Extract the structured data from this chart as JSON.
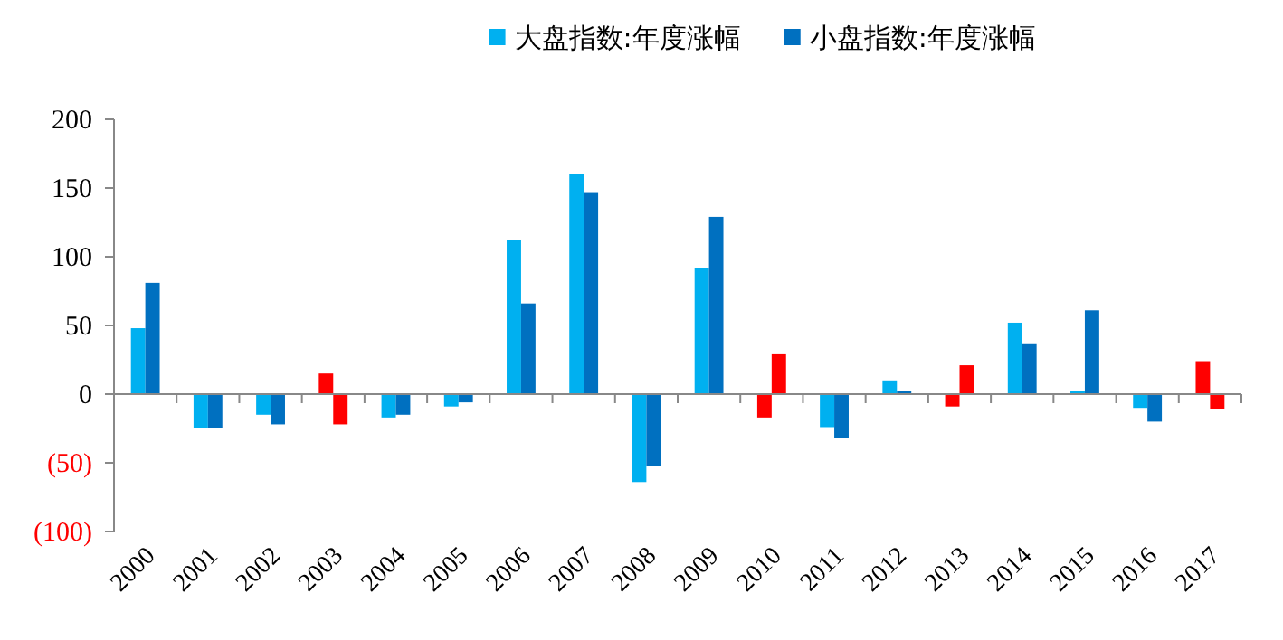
{
  "chart_data": {
    "type": "bar",
    "legend": "top",
    "categories": [
      "2000",
      "2001",
      "2002",
      "2003",
      "2004",
      "2005",
      "2006",
      "2007",
      "2008",
      "2009",
      "2010",
      "2011",
      "2012",
      "2013",
      "2014",
      "2015",
      "2016",
      "2017"
    ],
    "series": [
      {
        "name": "大盘指数:年度涨幅",
        "color": "#00b0f0",
        "values": [
          48,
          -25,
          -15,
          15,
          -17,
          -9,
          112,
          160,
          -64,
          92,
          -17,
          -24,
          10,
          -9,
          52,
          2,
          -10,
          24
        ],
        "colors": [
          "#00b0f0",
          "#00b0f0",
          "#00b0f0",
          "#ff0000",
          "#00b0f0",
          "#00b0f0",
          "#00b0f0",
          "#00b0f0",
          "#00b0f0",
          "#00b0f0",
          "#ff0000",
          "#00b0f0",
          "#00b0f0",
          "#ff0000",
          "#00b0f0",
          "#00b0f0",
          "#00b0f0",
          "#ff0000"
        ]
      },
      {
        "name": "小盘指数:年度涨幅",
        "color": "#0070c0",
        "values": [
          81,
          -25,
          -22,
          -22,
          -15,
          -6,
          66,
          147,
          -52,
          129,
          29,
          -32,
          2,
          21,
          37,
          61,
          -20,
          -11
        ],
        "colors": [
          "#0070c0",
          "#0070c0",
          "#0070c0",
          "#ff0000",
          "#0070c0",
          "#0070c0",
          "#0070c0",
          "#0070c0",
          "#0070c0",
          "#0070c0",
          "#ff0000",
          "#0070c0",
          "#0070c0",
          "#ff0000",
          "#0070c0",
          "#0070c0",
          "#0070c0",
          "#ff0000"
        ]
      }
    ],
    "ylim": [
      -100,
      200
    ],
    "yticks": [
      {
        "value": -100,
        "label": "(100)"
      },
      {
        "value": -50,
        "label": "(50)"
      },
      0,
      50,
      100,
      150,
      200
    ]
  }
}
